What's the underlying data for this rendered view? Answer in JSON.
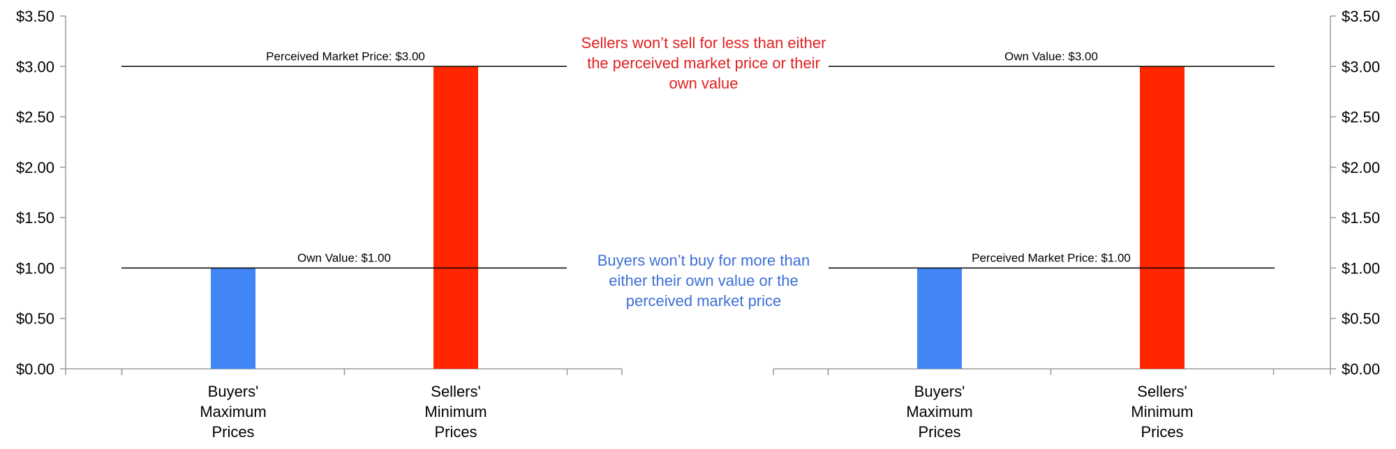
{
  "colors": {
    "buyers": "#4285f4",
    "sellers": "#ff2600",
    "sellers_note": "#e02020",
    "buyers_note": "#3d6fd6",
    "axis": "#9a9a9a",
    "ref_line": "#000000"
  },
  "notes": {
    "sellers": "Sellers won’t sell for less than either the perceived market price or their own value",
    "buyers": "Buyers won’t buy for more than either their own value or the perceived market price"
  },
  "chart_data": [
    {
      "type": "bar",
      "y_axis_side": "left",
      "categories": [
        "Buyers' Maximum Prices",
        "Sellers' Minimum Prices"
      ],
      "category_lines": [
        [
          "Buyers'",
          "Maximum",
          "Prices"
        ],
        [
          "Sellers'",
          "Minimum",
          "Prices"
        ]
      ],
      "values": [
        1.0,
        3.0
      ],
      "ylim": [
        0,
        3.5
      ],
      "yticks": [
        "$0.00",
        "$0.50",
        "$1.00",
        "$1.50",
        "$2.00",
        "$2.50",
        "$3.00",
        "$3.50"
      ],
      "reference_lines": [
        {
          "value": 3.0,
          "label": "Perceived Market Price: $3.00"
        },
        {
          "value": 1.0,
          "label": "Own Value: $1.00"
        }
      ],
      "grid": false,
      "legend": "none"
    },
    {
      "type": "bar",
      "y_axis_side": "right",
      "categories": [
        "Buyers' Maximum Prices",
        "Sellers' Minimum Prices"
      ],
      "category_lines": [
        [
          "Buyers'",
          "Maximum",
          "Prices"
        ],
        [
          "Sellers'",
          "Minimum",
          "Prices"
        ]
      ],
      "values": [
        1.0,
        3.0
      ],
      "ylim": [
        0,
        3.5
      ],
      "yticks": [
        "$0.00",
        "$0.50",
        "$1.00",
        "$1.50",
        "$2.00",
        "$2.50",
        "$3.00",
        "$3.50"
      ],
      "reference_lines": [
        {
          "value": 3.0,
          "label": "Own Value: $3.00"
        },
        {
          "value": 1.0,
          "label": "Perceived Market Price: $1.00"
        }
      ],
      "grid": false,
      "legend": "none"
    }
  ]
}
